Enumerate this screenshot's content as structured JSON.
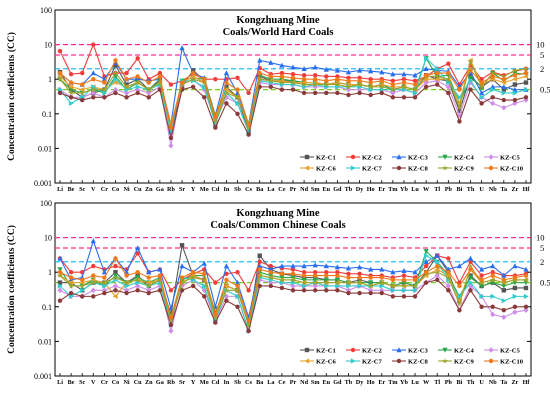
{
  "colors": {
    "KZ-C1": "#555555",
    "KZ-C2": "#f23b3b",
    "KZ-C3": "#2a6ef0",
    "KZ-C4": "#2aa74c",
    "KZ-C5": "#cf8ee8",
    "KZ-C6": "#e8a12a",
    "KZ-C7": "#33cccc",
    "KZ-C8": "#8a3a3a",
    "KZ-C9": "#9aa42a",
    "KZ-C10": "#f07a1a",
    "ref10": "#ff2e8a",
    "ref5": "#ff2e8a",
    "ref2": "#2ab8f0",
    "ref05": "#7acc2a"
  },
  "chart_data": [
    {
      "type": "line",
      "title": "Kongzhuang Mine",
      "subtitle": "Coals/World Hard Coals",
      "ylabel": "Concentration coefficients (CC)",
      "yscale": "log",
      "ylim": [
        0.001,
        100
      ],
      "yticks": [
        "0.001",
        "0.01",
        "0.1",
        "1",
        "10",
        "100"
      ],
      "reference_lines": [
        {
          "value": 10,
          "label": "10"
        },
        {
          "value": 5,
          "label": "5"
        },
        {
          "value": 2,
          "label": "2"
        },
        {
          "value": 0.5,
          "label": "0.5"
        }
      ],
      "legend_position": "bottom-right",
      "categories": [
        "Li",
        "Be",
        "Sc",
        "V",
        "Cr",
        "Co",
        "Ni",
        "Cu",
        "Zn",
        "Ga",
        "Rb",
        "Sr",
        "Y",
        "Mo",
        "Cd",
        "In",
        "Sb",
        "Cs",
        "Ba",
        "La",
        "Ce",
        "Pr",
        "Nd",
        "Sm",
        "Eu",
        "Gd",
        "Tb",
        "Dy",
        "Ho",
        "Er",
        "Tm",
        "Yb",
        "Lu",
        "W",
        "Tl",
        "Pb",
        "Bi",
        "Th",
        "U",
        "Nb",
        "Ta",
        "Zr",
        "Hf"
      ],
      "series": [
        {
          "name": "KZ-C1",
          "values": [
            1.6,
            0.5,
            0.3,
            0.4,
            0.5,
            2.5,
            0.7,
            1.0,
            0.5,
            1.0,
            0.03,
            0.6,
            1.8,
            0.9,
            0.05,
            0.6,
            0.3,
            0.03,
            1.2,
            0.9,
            0.9,
            0.9,
            0.8,
            0.8,
            0.7,
            0.8,
            0.7,
            0.7,
            0.6,
            0.7,
            0.5,
            0.6,
            0.5,
            1.3,
            1.0,
            0.9,
            0.12,
            1.2,
            0.6,
            1.0,
            0.5,
            0.7,
            0.8
          ]
        },
        {
          "name": "KZ-C2",
          "values": [
            6.5,
            1.4,
            1.5,
            10.0,
            1.2,
            1.5,
            1.5,
            4.0,
            1.0,
            1.5,
            0.7,
            0.9,
            1.4,
            1.0,
            1.0,
            1.0,
            1.1,
            0.4,
            2.1,
            1.4,
            1.5,
            1.4,
            1.3,
            1.3,
            1.2,
            1.2,
            1.1,
            1.1,
            1.0,
            1.0,
            0.9,
            1.0,
            0.9,
            1.2,
            2.0,
            2.8,
            0.7,
            2.5,
            1.0,
            1.6,
            1.3,
            1.7,
            2.0
          ]
        },
        {
          "name": "KZ-C3",
          "values": [
            1.5,
            0.8,
            0.7,
            1.5,
            1.0,
            3.0,
            1.0,
            1.0,
            0.9,
            1.0,
            0.05,
            8.0,
            1.5,
            1.1,
            0.09,
            1.5,
            0.4,
            0.05,
            3.5,
            3.0,
            2.5,
            2.2,
            2.0,
            2.2,
            1.9,
            1.8,
            1.6,
            1.8,
            1.7,
            1.6,
            1.4,
            1.4,
            1.3,
            2.0,
            1.8,
            1.7,
            0.6,
            1.6,
            0.4,
            0.6,
            0.6,
            0.5,
            0.5
          ]
        },
        {
          "name": "KZ-C4",
          "values": [
            1.0,
            0.5,
            0.4,
            0.5,
            0.4,
            1.2,
            0.5,
            0.8,
            0.5,
            0.9,
            0.04,
            0.9,
            1.1,
            1.0,
            0.09,
            0.5,
            0.3,
            0.04,
            1.3,
            1.0,
            1.0,
            0.9,
            0.8,
            0.8,
            0.7,
            0.8,
            0.7,
            0.7,
            0.6,
            0.7,
            0.5,
            0.6,
            0.5,
            4.0,
            1.2,
            1.3,
            0.2,
            1.1,
            0.6,
            1.5,
            0.9,
            1.5,
            1.4
          ]
        },
        {
          "name": "KZ-C5",
          "values": [
            0.5,
            0.3,
            0.3,
            0.4,
            0.3,
            0.5,
            0.4,
            0.5,
            0.4,
            0.6,
            0.012,
            0.7,
            1.0,
            0.5,
            0.06,
            0.3,
            0.2,
            0.03,
            0.8,
            0.7,
            0.7,
            0.7,
            0.6,
            0.6,
            0.6,
            0.6,
            0.5,
            0.5,
            0.5,
            0.5,
            0.4,
            0.5,
            0.4,
            0.8,
            0.9,
            0.6,
            0.09,
            0.8,
            0.3,
            0.2,
            0.15,
            0.2,
            0.25
          ]
        },
        {
          "name": "KZ-C6",
          "values": [
            1.2,
            0.6,
            0.5,
            0.6,
            0.5,
            0.8,
            0.6,
            0.8,
            0.5,
            0.8,
            0.05,
            0.8,
            1.2,
            0.8,
            0.07,
            0.5,
            0.3,
            0.04,
            1.0,
            0.9,
            0.9,
            0.8,
            0.8,
            0.8,
            0.7,
            0.8,
            0.7,
            0.7,
            0.6,
            0.7,
            0.6,
            0.6,
            0.5,
            1.0,
            1.0,
            1.0,
            0.2,
            3.5,
            0.7,
            1.0,
            0.8,
            1.0,
            1.2
          ]
        },
        {
          "name": "KZ-C7",
          "values": [
            0.5,
            0.2,
            0.3,
            0.6,
            0.4,
            1.0,
            0.5,
            0.6,
            0.5,
            0.7,
            0.03,
            0.9,
            0.9,
            0.6,
            0.05,
            0.4,
            0.2,
            0.03,
            0.9,
            0.8,
            0.7,
            0.7,
            0.6,
            0.7,
            0.6,
            0.6,
            0.6,
            0.6,
            0.5,
            0.5,
            0.5,
            0.5,
            0.4,
            4.0,
            2.0,
            0.8,
            0.3,
            0.9,
            0.3,
            0.5,
            0.4,
            0.4,
            0.5
          ]
        },
        {
          "name": "KZ-C8",
          "values": [
            0.4,
            0.3,
            0.25,
            0.3,
            0.3,
            0.4,
            0.3,
            0.4,
            0.3,
            0.5,
            0.02,
            0.5,
            0.6,
            0.3,
            0.04,
            0.2,
            0.1,
            0.025,
            0.6,
            0.6,
            0.5,
            0.5,
            0.4,
            0.4,
            0.4,
            0.4,
            0.35,
            0.4,
            0.35,
            0.4,
            0.3,
            0.3,
            0.3,
            0.6,
            0.7,
            0.4,
            0.06,
            0.5,
            0.2,
            0.3,
            0.25,
            0.25,
            0.3
          ]
        },
        {
          "name": "KZ-C9",
          "values": [
            1.0,
            0.4,
            0.4,
            0.5,
            0.5,
            1.5,
            0.6,
            0.8,
            0.5,
            0.8,
            0.04,
            0.7,
            1.0,
            0.8,
            0.06,
            0.4,
            0.3,
            0.04,
            1.0,
            0.9,
            0.8,
            0.8,
            0.7,
            0.7,
            0.7,
            0.7,
            0.6,
            0.7,
            0.6,
            0.6,
            0.5,
            0.6,
            0.5,
            1.2,
            1.2,
            1.0,
            0.15,
            3.2,
            0.6,
            1.5,
            1.2,
            1.8,
            2.0
          ]
        },
        {
          "name": "KZ-C10",
          "values": [
            1.5,
            0.8,
            0.7,
            1.0,
            0.8,
            3.5,
            1.0,
            1.2,
            0.8,
            1.2,
            0.04,
            0.8,
            1.5,
            1.0,
            0.08,
            0.8,
            0.5,
            0.05,
            1.5,
            1.2,
            1.2,
            1.1,
            1.0,
            1.0,
            0.9,
            1.0,
            0.9,
            0.9,
            0.8,
            0.9,
            0.7,
            0.8,
            0.7,
            1.3,
            1.5,
            1.5,
            0.5,
            1.8,
            0.8,
            1.2,
            1.0,
            1.3,
            1.5
          ]
        }
      ]
    },
    {
      "type": "line",
      "title": "Kongzhuang Mine",
      "subtitle": "Coals/Common Chinese Coals",
      "ylabel": "Concentration coefficients (CC)",
      "yscale": "log",
      "ylim": [
        0.001,
        100
      ],
      "yticks": [
        "0.001",
        "0.01",
        "0.1",
        "1",
        "10",
        "100"
      ],
      "reference_lines": [
        {
          "value": 10,
          "label": "10"
        },
        {
          "value": 5,
          "label": "5"
        },
        {
          "value": 2,
          "label": "2"
        },
        {
          "value": 0.5,
          "label": "0.5"
        }
      ],
      "legend_position": "bottom-right",
      "categories": [
        "Li",
        "Be",
        "Sc",
        "V",
        "Cr",
        "Co",
        "Ni",
        "Cu",
        "Zn",
        "Ga",
        "Rb",
        "Sr",
        "Y",
        "Mo",
        "Cd",
        "In",
        "Sb",
        "Cs",
        "Ba",
        "La",
        "Ce",
        "Pr",
        "Nd",
        "Sm",
        "Eu",
        "Gd",
        "Tb",
        "Dy",
        "Ho",
        "Er",
        "Tm",
        "Yb",
        "Lu",
        "W",
        "Tl",
        "Pb",
        "Bi",
        "Th",
        "U",
        "Nb",
        "Ta",
        "Zr",
        "Hf"
      ],
      "series": [
        {
          "name": "KZ-C1",
          "values": [
            0.5,
            0.5,
            0.3,
            0.5,
            0.5,
            1.0,
            0.5,
            0.8,
            0.4,
            0.6,
            0.06,
            6.0,
            0.8,
            0.6,
            0.05,
            0.4,
            0.3,
            0.03,
            3.0,
            1.2,
            0.9,
            0.8,
            0.7,
            0.7,
            0.6,
            0.6,
            0.5,
            0.6,
            0.5,
            0.5,
            0.4,
            0.5,
            0.4,
            1.0,
            3.0,
            1.0,
            0.15,
            0.8,
            0.4,
            0.5,
            0.3,
            0.35,
            0.35
          ]
        },
        {
          "name": "KZ-C2",
          "values": [
            2.5,
            1.0,
            1.0,
            1.5,
            1.2,
            1.5,
            1.2,
            3.5,
            1.0,
            1.2,
            0.3,
            0.6,
            0.9,
            1.2,
            0.5,
            0.9,
            1.0,
            0.3,
            2.0,
            1.5,
            1.3,
            1.2,
            1.0,
            1.0,
            1.0,
            1.0,
            0.9,
            0.9,
            0.8,
            0.8,
            0.7,
            0.8,
            0.7,
            1.5,
            3.0,
            2.5,
            0.5,
            2.0,
            0.8,
            1.0,
            0.8,
            0.8,
            0.9
          ]
        },
        {
          "name": "KZ-C3",
          "values": [
            2.5,
            0.6,
            0.7,
            8.0,
            1.0,
            2.5,
            1.0,
            5.0,
            1.0,
            1.2,
            0.09,
            1.5,
            1.0,
            1.8,
            0.1,
            1.5,
            0.5,
            0.05,
            1.5,
            1.2,
            1.5,
            1.5,
            1.5,
            1.6,
            1.5,
            1.4,
            1.3,
            1.4,
            1.2,
            1.2,
            1.0,
            1.1,
            1.0,
            2.0,
            3.0,
            1.2,
            1.5,
            2.5,
            1.2,
            1.5,
            0.8,
            1.5,
            1.2
          ]
        },
        {
          "name": "KZ-C4",
          "values": [
            1.2,
            0.4,
            0.4,
            0.6,
            0.4,
            0.8,
            0.5,
            0.7,
            0.5,
            0.7,
            0.05,
            0.6,
            0.8,
            0.8,
            0.07,
            0.4,
            0.3,
            0.03,
            1.0,
            0.8,
            0.7,
            0.7,
            0.6,
            0.6,
            0.6,
            0.6,
            0.5,
            0.5,
            0.5,
            0.5,
            0.4,
            0.5,
            0.4,
            4.0,
            2.0,
            0.8,
            0.2,
            0.7,
            0.4,
            0.5,
            0.4,
            0.5,
            0.5
          ]
        },
        {
          "name": "KZ-C5",
          "values": [
            0.3,
            0.2,
            0.2,
            0.3,
            0.3,
            0.4,
            0.3,
            0.4,
            0.3,
            0.4,
            0.02,
            0.4,
            0.6,
            0.3,
            0.04,
            0.2,
            0.2,
            0.02,
            0.6,
            0.5,
            0.5,
            0.4,
            0.4,
            0.4,
            0.4,
            0.4,
            0.3,
            0.4,
            0.3,
            0.3,
            0.3,
            0.3,
            0.3,
            0.5,
            0.8,
            0.4,
            0.08,
            0.4,
            0.2,
            0.06,
            0.05,
            0.07,
            0.08
          ]
        },
        {
          "name": "KZ-C6",
          "values": [
            0.8,
            0.5,
            0.5,
            0.6,
            0.5,
            0.2,
            0.5,
            0.6,
            0.5,
            0.6,
            0.05,
            0.5,
            0.8,
            0.6,
            0.05,
            0.4,
            0.3,
            0.03,
            0.8,
            0.7,
            0.6,
            0.6,
            0.5,
            0.5,
            0.5,
            0.5,
            0.5,
            0.5,
            0.4,
            0.5,
            0.4,
            0.4,
            0.4,
            0.8,
            1.2,
            0.8,
            0.15,
            1.2,
            0.5,
            0.6,
            0.5,
            0.6,
            0.6
          ]
        },
        {
          "name": "KZ-C7",
          "values": [
            0.4,
            0.2,
            0.3,
            0.5,
            0.4,
            0.6,
            0.4,
            0.5,
            0.4,
            0.5,
            0.03,
            0.7,
            0.6,
            0.4,
            0.04,
            0.3,
            0.2,
            0.02,
            0.7,
            0.6,
            0.5,
            0.5,
            0.4,
            0.5,
            0.4,
            0.4,
            0.4,
            0.4,
            0.4,
            0.4,
            0.3,
            0.3,
            0.3,
            3.0,
            2.0,
            0.6,
            0.2,
            0.5,
            0.2,
            0.2,
            0.15,
            0.2,
            0.2
          ]
        },
        {
          "name": "KZ-C8",
          "values": [
            0.15,
            0.25,
            0.2,
            0.2,
            0.25,
            0.3,
            0.25,
            0.3,
            0.25,
            0.3,
            0.03,
            0.3,
            0.4,
            0.2,
            0.035,
            0.15,
            0.1,
            0.02,
            0.4,
            0.4,
            0.35,
            0.3,
            0.3,
            0.3,
            0.3,
            0.3,
            0.25,
            0.25,
            0.25,
            0.25,
            0.2,
            0.2,
            0.2,
            0.5,
            0.6,
            0.3,
            0.08,
            0.3,
            0.1,
            0.1,
            0.08,
            0.1,
            0.1
          ]
        },
        {
          "name": "KZ-C9",
          "values": [
            0.8,
            0.4,
            0.4,
            0.5,
            0.5,
            0.7,
            0.5,
            0.6,
            0.4,
            0.6,
            0.04,
            0.5,
            0.7,
            0.6,
            0.05,
            0.3,
            0.3,
            0.03,
            0.8,
            0.7,
            0.6,
            0.6,
            0.5,
            0.5,
            0.5,
            0.5,
            0.5,
            0.5,
            0.4,
            0.5,
            0.4,
            0.4,
            0.4,
            0.9,
            1.0,
            0.7,
            0.12,
            1.5,
            0.5,
            0.6,
            0.5,
            0.6,
            0.6
          ]
        },
        {
          "name": "KZ-C10",
          "values": [
            1.0,
            0.7,
            0.6,
            0.8,
            0.7,
            2.5,
            0.8,
            1.0,
            0.7,
            0.8,
            0.05,
            0.7,
            1.0,
            0.9,
            0.06,
            0.6,
            0.4,
            0.04,
            1.2,
            1.0,
            0.9,
            0.9,
            0.8,
            0.8,
            0.8,
            0.8,
            0.7,
            0.7,
            0.7,
            0.7,
            0.6,
            0.6,
            0.6,
            1.0,
            1.5,
            1.0,
            0.4,
            1.2,
            0.6,
            0.8,
            0.6,
            0.7,
            0.8
          ]
        }
      ]
    }
  ]
}
